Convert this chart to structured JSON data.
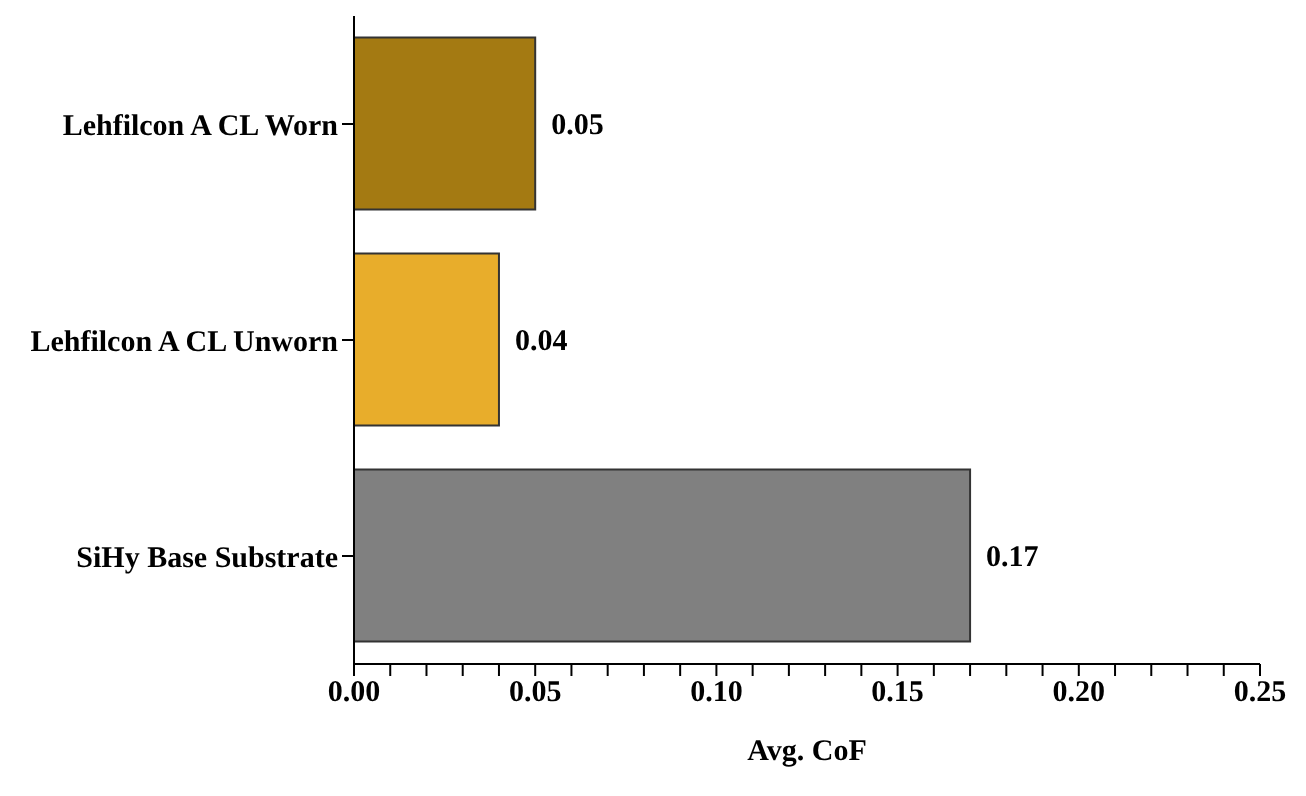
{
  "chart_data": {
    "type": "bar",
    "orientation": "horizontal",
    "xlabel": "Avg. CoF",
    "categories": [
      "Lehfilcon A CL Worn",
      "Lehfilcon A CL Unworn",
      "SiHy Base Substrate"
    ],
    "values": [
      0.05,
      0.04,
      0.17
    ],
    "colors": [
      "#a47a12",
      "#e8ad2b",
      "#808080"
    ],
    "xlim": [
      0,
      0.25
    ],
    "xticks": [
      "0.00",
      {
        "value": 0.01,
        "label": null
      },
      {
        "value": 0.02,
        "label": null
      },
      {
        "value": 0.03,
        "label": null
      },
      {
        "value": 0.04,
        "label": null
      },
      {
        "value": 0.05,
        "label": "0.05"
      },
      {
        "value": 0.06,
        "label": null
      },
      {
        "value": 0.07,
        "label": null
      },
      {
        "value": 0.08,
        "label": null
      },
      {
        "value": 0.09,
        "label": null
      },
      {
        "value": 0.1,
        "label": "0.10"
      },
      {
        "value": 0.11,
        "label": null
      },
      {
        "value": 0.12,
        "label": null
      },
      {
        "value": 0.13,
        "label": null
      },
      {
        "value": 0.14,
        "label": null
      },
      {
        "value": 0.15,
        "label": "0.15"
      },
      {
        "value": 0.16,
        "label": null
      },
      {
        "value": 0.17,
        "label": null
      },
      {
        "value": 0.18,
        "label": null
      },
      {
        "value": 0.19,
        "label": null
      },
      {
        "value": 0.2,
        "label": "0.20"
      },
      {
        "value": 0.21,
        "label": null
      },
      {
        "value": 0.22,
        "label": null
      },
      {
        "value": 0.23,
        "label": null
      },
      {
        "value": 0.24,
        "label": null
      },
      {
        "value": 0.25,
        "label": "0.25"
      }
    ],
    "data_labels": true
  }
}
